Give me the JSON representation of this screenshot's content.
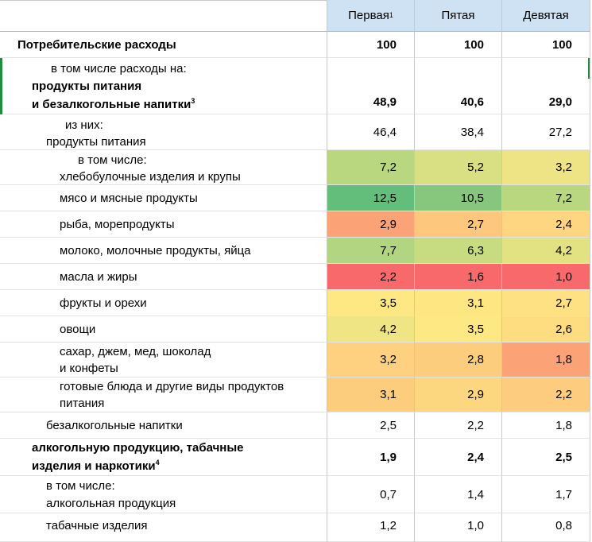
{
  "header": {
    "col1": "Первая",
    "col1_sup": "1",
    "col2": "Пятая",
    "col3": "Девятая"
  },
  "rows": [
    {
      "lines": [
        "Потребительские расходы"
      ],
      "values": [
        "100",
        "100",
        "100"
      ],
      "bold": true
    },
    {
      "lines": [
        "в том числе расходы на:",
        "продукты питания",
        "и безалкогольные напитки"
      ],
      "sup": "3",
      "values": [
        "48,9",
        "40,6",
        "29,0"
      ],
      "bold": true
    },
    {
      "lines": [
        "из них:",
        "продукты питания"
      ],
      "values": [
        "46,4",
        "38,4",
        "27,2"
      ]
    },
    {
      "lines": [
        "в том числе:",
        "хлебобулочные изделия и крупы"
      ],
      "values": [
        "7,2",
        "5,2",
        "3,2"
      ],
      "colors": [
        "#b8d77f",
        "#d9e084",
        "#eee485"
      ]
    },
    {
      "lines": [
        "мясо и мясные продукты"
      ],
      "values": [
        "12,5",
        "10,5",
        "7,2"
      ],
      "colors": [
        "#63be7b",
        "#86c77d",
        "#b8d77f"
      ]
    },
    {
      "lines": [
        "рыба, морепродукты"
      ],
      "values": [
        "2,9",
        "2,7",
        "2,4"
      ],
      "colors": [
        "#fba276",
        "#fdc87d",
        "#fed580"
      ]
    },
    {
      "lines": [
        "молоко, молочные продукты, яйца"
      ],
      "values": [
        "7,7",
        "6,3",
        "4,2"
      ],
      "colors": [
        "#b1d580",
        "#c7dc81",
        "#e3e283"
      ]
    },
    {
      "lines": [
        "масла и жиры"
      ],
      "values": [
        "2,2",
        "1,6",
        "1,0"
      ],
      "colors": [
        "#f8696b",
        "#f8696b",
        "#f8696b"
      ]
    },
    {
      "lines": [
        "фрукты и орехи"
      ],
      "values": [
        "3,5",
        "3,1",
        "2,7"
      ],
      "colors": [
        "#fde883",
        "#fee683",
        "#fee182"
      ]
    },
    {
      "lines": [
        "овощи"
      ],
      "values": [
        "4,2",
        "3,5",
        "2,6"
      ],
      "colors": [
        "#f0e584",
        "#fde883",
        "#fedd81"
      ]
    },
    {
      "lines": [
        "сахар, джем, мед, шоколад",
        "и конфеты"
      ],
      "values": [
        "3,2",
        "2,8",
        "1,8"
      ],
      "colors": [
        "#fdd17f",
        "#fdcd7e",
        "#fba276"
      ]
    },
    {
      "lines": [
        "готовые блюда и другие виды продуктов",
        "питания"
      ],
      "values": [
        "3,1",
        "2,9",
        "2,2"
      ],
      "colors": [
        "#fdcd7e",
        "#fdd680",
        "#fdcc7e"
      ]
    },
    {
      "lines": [
        "безалкогольные напитки"
      ],
      "values": [
        "2,5",
        "2,2",
        "1,8"
      ]
    },
    {
      "lines": [
        "алкогольную продукцию, табачные",
        "изделия и наркотики"
      ],
      "sup": "4",
      "values": [
        "1,9",
        "2,4",
        "2,5"
      ],
      "bold": true
    },
    {
      "lines": [
        "в том числе:",
        "алкогольная продукция"
      ],
      "values": [
        "0,7",
        "1,4",
        "1,7"
      ]
    },
    {
      "lines": [
        "табачные изделия"
      ],
      "values": [
        "1,2",
        "1,0",
        "0,8"
      ]
    }
  ]
}
